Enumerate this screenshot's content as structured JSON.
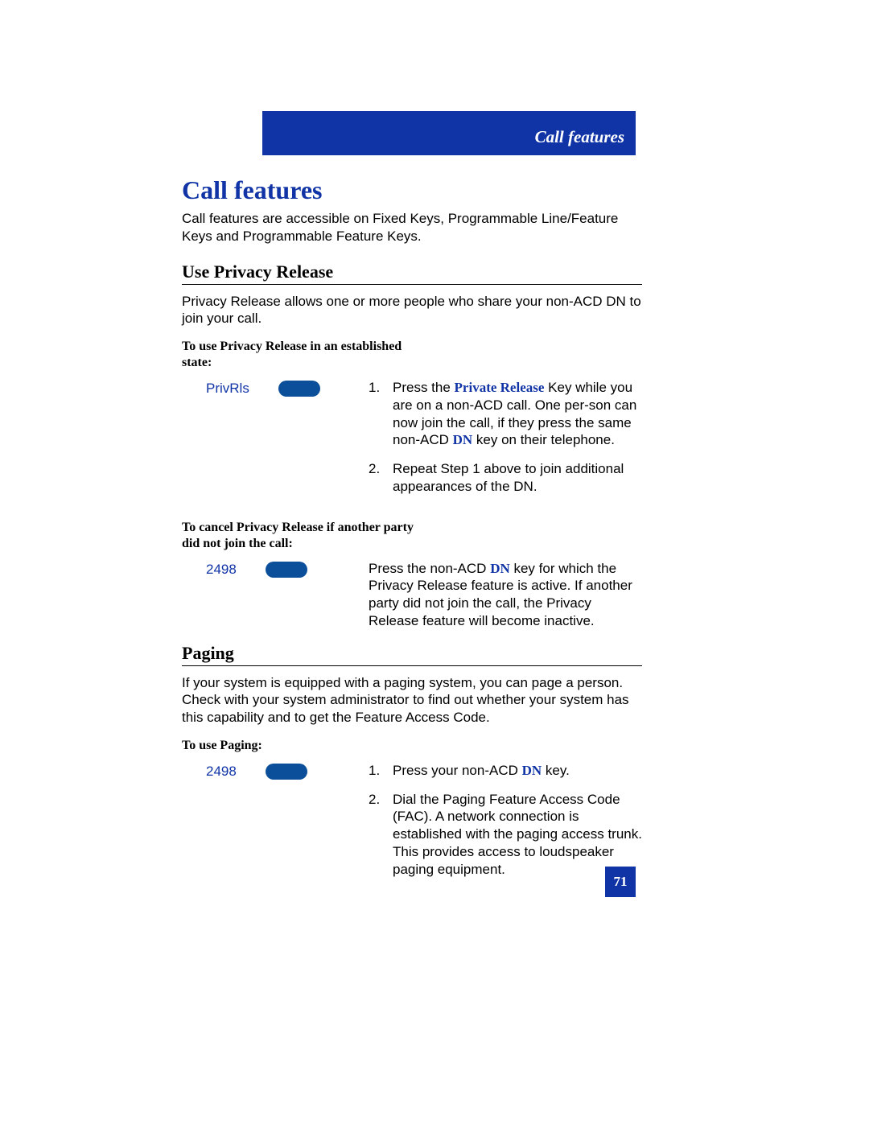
{
  "colors": {
    "brand_blue": "#1034a6",
    "key_blue": "#0b4f9a",
    "text": "#000000",
    "background": "#ffffff"
  },
  "fonts": {
    "serif": "Times New Roman",
    "sans": "Arial",
    "title_size_pt": 32,
    "section_title_size_pt": 22,
    "body_size_pt": 17,
    "sub_instr_size_pt": 16,
    "header_bar_size_pt": 21,
    "page_number_size_pt": 17
  },
  "header": {
    "label": "Call features"
  },
  "title": "Call features",
  "intro": "Call features are accessible on Fixed Keys, Programmable Line/Feature Keys and Programmable Feature Keys.",
  "sections": {
    "privacy": {
      "title": "Use Privacy Release",
      "body": "Privacy Release allows one or more people who share your non-ACD DN to join your call.",
      "use_heading": "To use Privacy Release in an established state:",
      "cancel_heading": "To cancel Privacy Release if another party did not join the call:",
      "keys": {
        "privrls": "PrivRls",
        "dn": "2498"
      },
      "step1_pre": "Press the ",
      "step1_keyword": "Private Release",
      "step1_mid": " Key while you are on a non-ACD call. One per-son can now join the call, if they press the same non-ACD ",
      "step1_dn": "DN",
      "step1_post": " key on their telephone.",
      "step2": "Repeat Step 1 above to join additional appearances of the DN.",
      "cancel_pre": "Press the non-ACD ",
      "cancel_dn": "DN",
      "cancel_post": " key for which the Privacy Release feature is active. If another party did not join the call, the Privacy Release feature will become inactive."
    },
    "paging": {
      "title": "Paging",
      "body": "If your system is equipped with a paging system, you can page a person. Check with your system administrator to find out whether your system has this capability and to get the Feature Access Code.",
      "use_heading": "To use Paging:",
      "keys": {
        "dn": "2498"
      },
      "step1_pre": "Press your non-ACD ",
      "step1_dn": "DN",
      "step1_post": " key.",
      "step2": "Dial the Paging Feature Access Code (FAC). A network connection is established with the paging access trunk. This provides access to loudspeaker paging equipment."
    }
  },
  "page_number": "71"
}
